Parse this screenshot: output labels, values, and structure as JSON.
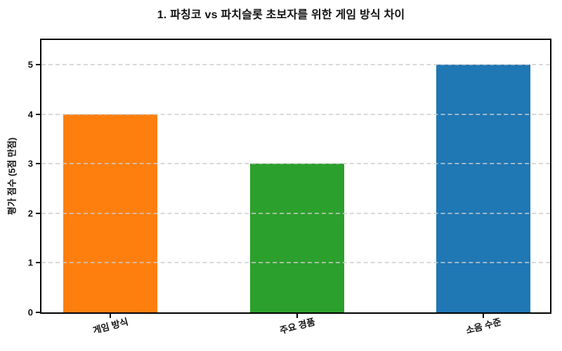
{
  "chart_data": {
    "type": "bar",
    "title": "1. 파칭코 vs 파치슬롯 초보자를 위한 게임 방식 차이",
    "categories": [
      "게임 방식",
      "주요 경품",
      "소음 수준"
    ],
    "values": [
      4,
      3,
      5
    ],
    "bar_colors": [
      "#ff7f0e",
      "#2ca02c",
      "#1f77b4"
    ],
    "xlabel": "",
    "ylabel": "평가 점수 (5점 만점)",
    "ylim": [
      0,
      5.5
    ],
    "yticks": [
      0,
      1,
      2,
      3,
      4,
      5
    ],
    "grid": "horizontal-dashed-over-bars",
    "legend": "none",
    "x_tick_rotation_deg": -15,
    "spine_color": "#000000",
    "background_color": "#ffffff"
  }
}
